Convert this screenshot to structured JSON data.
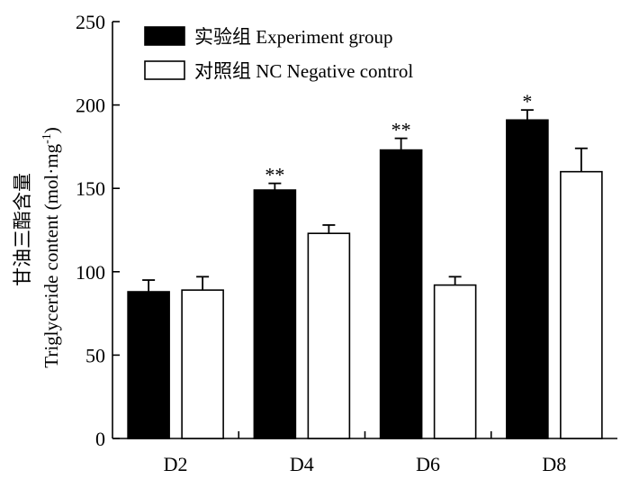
{
  "chart_data": {
    "type": "bar",
    "categories": [
      "D2",
      "D4",
      "D6",
      "D8"
    ],
    "series": [
      {
        "name": "实验组 Experiment group",
        "color": "#000000",
        "values": [
          88,
          149,
          173,
          191
        ],
        "errors": [
          7,
          4,
          7,
          6
        ],
        "annotations": [
          "",
          "**",
          "**",
          "*"
        ]
      },
      {
        "name": "对照组 NC Negative control",
        "color": "#ffffff",
        "values": [
          89,
          123,
          92,
          160
        ],
        "errors": [
          8,
          5,
          5,
          14
        ],
        "annotations": [
          "",
          "",
          "",
          ""
        ]
      }
    ],
    "ylabel_cn": "甘油三酯含量",
    "ylabel_en": "Triglyceride content (mol·mg",
    "ylabel_sup": "-1",
    "ylabel_close": ")",
    "ylim": [
      0,
      250
    ],
    "yticks": [
      "0",
      "50",
      "100",
      "150",
      "200",
      "250"
    ],
    "legend_position": "top-left",
    "grid": false
  }
}
